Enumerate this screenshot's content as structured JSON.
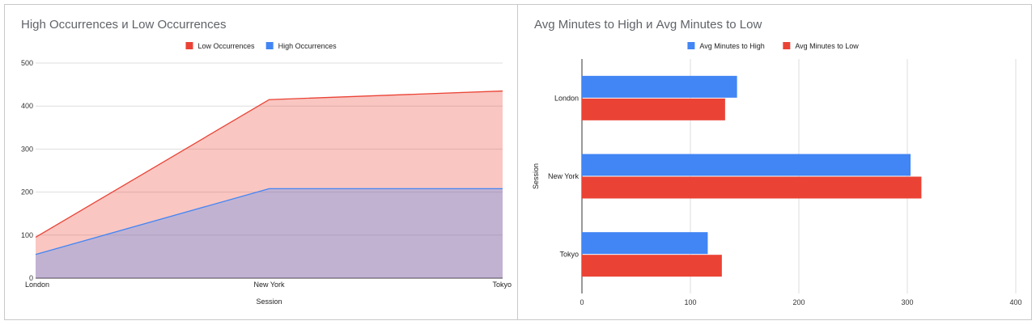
{
  "chart_data": [
    {
      "type": "area",
      "title": "High Occurrences и Low Occurrences",
      "xlabel": "Session",
      "ylabel": "",
      "categories": [
        "London",
        "New York",
        "Tokyo"
      ],
      "ylim": [
        0,
        500
      ],
      "yticks": [
        0,
        100,
        200,
        300,
        400,
        500
      ],
      "series": [
        {
          "name": "High Occurrences",
          "values": [
            55,
            208,
            208
          ],
          "color": "#4285f4"
        },
        {
          "name": "Low Occurrences",
          "values": [
            95,
            415,
            435
          ],
          "color": "#ea4335"
        }
      ],
      "legend": {
        "position": "top",
        "order": [
          "Low Occurrences",
          "High Occurrences"
        ]
      }
    },
    {
      "type": "bar",
      "orientation": "horizontal",
      "title": "Avg Minutes to High и Avg Minutes to Low",
      "xlabel": "",
      "ylabel": "Session",
      "categories": [
        "London",
        "New York",
        "Tokyo"
      ],
      "xlim": [
        0,
        400
      ],
      "xticks": [
        0,
        100,
        200,
        300,
        400
      ],
      "series": [
        {
          "name": "Avg Minutes to High",
          "values": [
            143,
            303,
            116
          ],
          "color": "#4285f4"
        },
        {
          "name": "Avg Minutes to Low",
          "values": [
            132,
            313,
            129
          ],
          "color": "#ea4335"
        }
      ],
      "legend": {
        "position": "top",
        "order": [
          "Avg Minutes to High",
          "Avg Minutes to Low"
        ]
      }
    }
  ]
}
